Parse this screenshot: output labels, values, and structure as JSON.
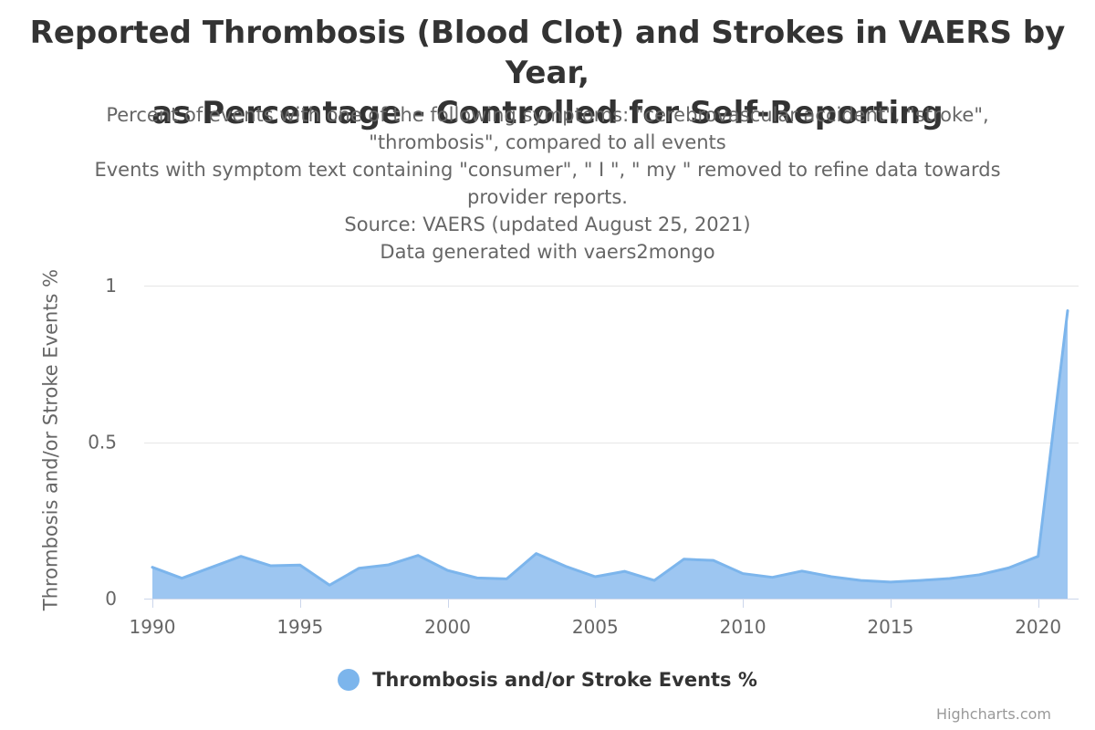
{
  "title": {
    "line1": "Reported Thrombosis (Blood Clot) and Strokes in VAERS by Year,",
    "line2": "as Percentage - Controlled for Self-Reporting"
  },
  "subtitle": {
    "line1": "Percent of events with one of the following symptoms: \"cerebrovascular accident\", \"stroke\",",
    "line2": "\"thrombosis\", compared to all events",
    "line3": "Events with symptom text containing \"consumer\", \" I \", \" my \" removed to refine data towards",
    "line4": "provider reports.",
    "line5": "Source: VAERS (updated August 25, 2021)",
    "line6": "Data generated with vaers2mongo"
  },
  "credits": "Highcharts.com",
  "colors": {
    "series_line": "#7cb5ec",
    "series_fill": "#9dc6f1",
    "grid": "#e6e6e6",
    "axis_line": "#ccd6eb",
    "label": "#666666"
  },
  "legend": {
    "position": "bottom-center"
  },
  "chart_data": {
    "type": "area",
    "title": "Reported Thrombosis (Blood Clot) and Strokes in VAERS by Year, as Percentage - Controlled for Self-Reporting",
    "xlabel": "",
    "ylabel": "Thrombosis and/or Stroke Events %",
    "xlim": [
      1990,
      2021
    ],
    "ylim": [
      0,
      1
    ],
    "grid": true,
    "x_ticks": [
      1990,
      1995,
      2000,
      2005,
      2010,
      2015,
      2020
    ],
    "y_ticks": [
      0,
      0.5,
      1
    ],
    "series": [
      {
        "name": "Thrombosis and/or Stroke Events %",
        "x": [
          1990,
          1991,
          1992,
          1993,
          1994,
          1995,
          1996,
          1997,
          1998,
          1999,
          2000,
          2001,
          2002,
          2003,
          2004,
          2005,
          2006,
          2007,
          2008,
          2009,
          2010,
          2011,
          2012,
          2013,
          2014,
          2015,
          2016,
          2017,
          2018,
          2019,
          2020,
          2021
        ],
        "values": [
          0.1,
          0.065,
          0.1,
          0.135,
          0.105,
          0.107,
          0.043,
          0.097,
          0.108,
          0.138,
          0.09,
          0.066,
          0.063,
          0.144,
          0.103,
          0.07,
          0.087,
          0.058,
          0.126,
          0.122,
          0.08,
          0.068,
          0.088,
          0.07,
          0.058,
          0.053,
          0.058,
          0.064,
          0.076,
          0.098,
          0.135,
          0.92
        ]
      }
    ]
  }
}
